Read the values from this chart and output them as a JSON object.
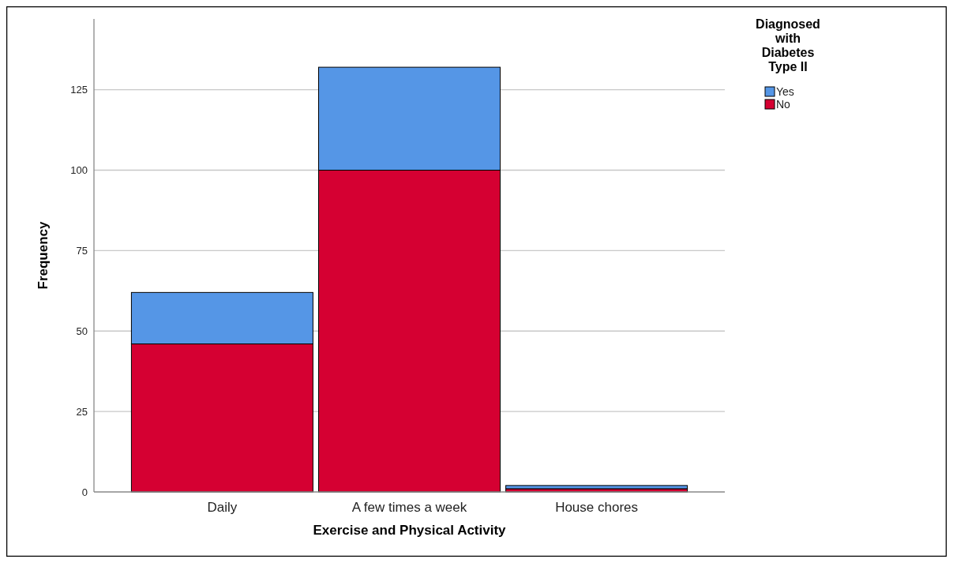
{
  "chart_data": {
    "type": "bar",
    "xlabel": "Exercise and Physical Activity",
    "ylabel": "Frequency",
    "legend_title": "Diagnosed with Diabetes Type II",
    "categories": [
      "Daily",
      "A few times a week",
      "House chores"
    ],
    "series": [
      {
        "name": "No",
        "color": "#d50032",
        "values": [
          46,
          100,
          1
        ]
      },
      {
        "name": "Yes",
        "color": "#5596e6",
        "values": [
          16,
          32,
          1
        ]
      }
    ],
    "stacked": true,
    "ylim": [
      0,
      147
    ],
    "yticks": [
      0,
      25,
      50,
      75,
      100,
      125
    ],
    "grid": "y",
    "legend": "top right"
  }
}
